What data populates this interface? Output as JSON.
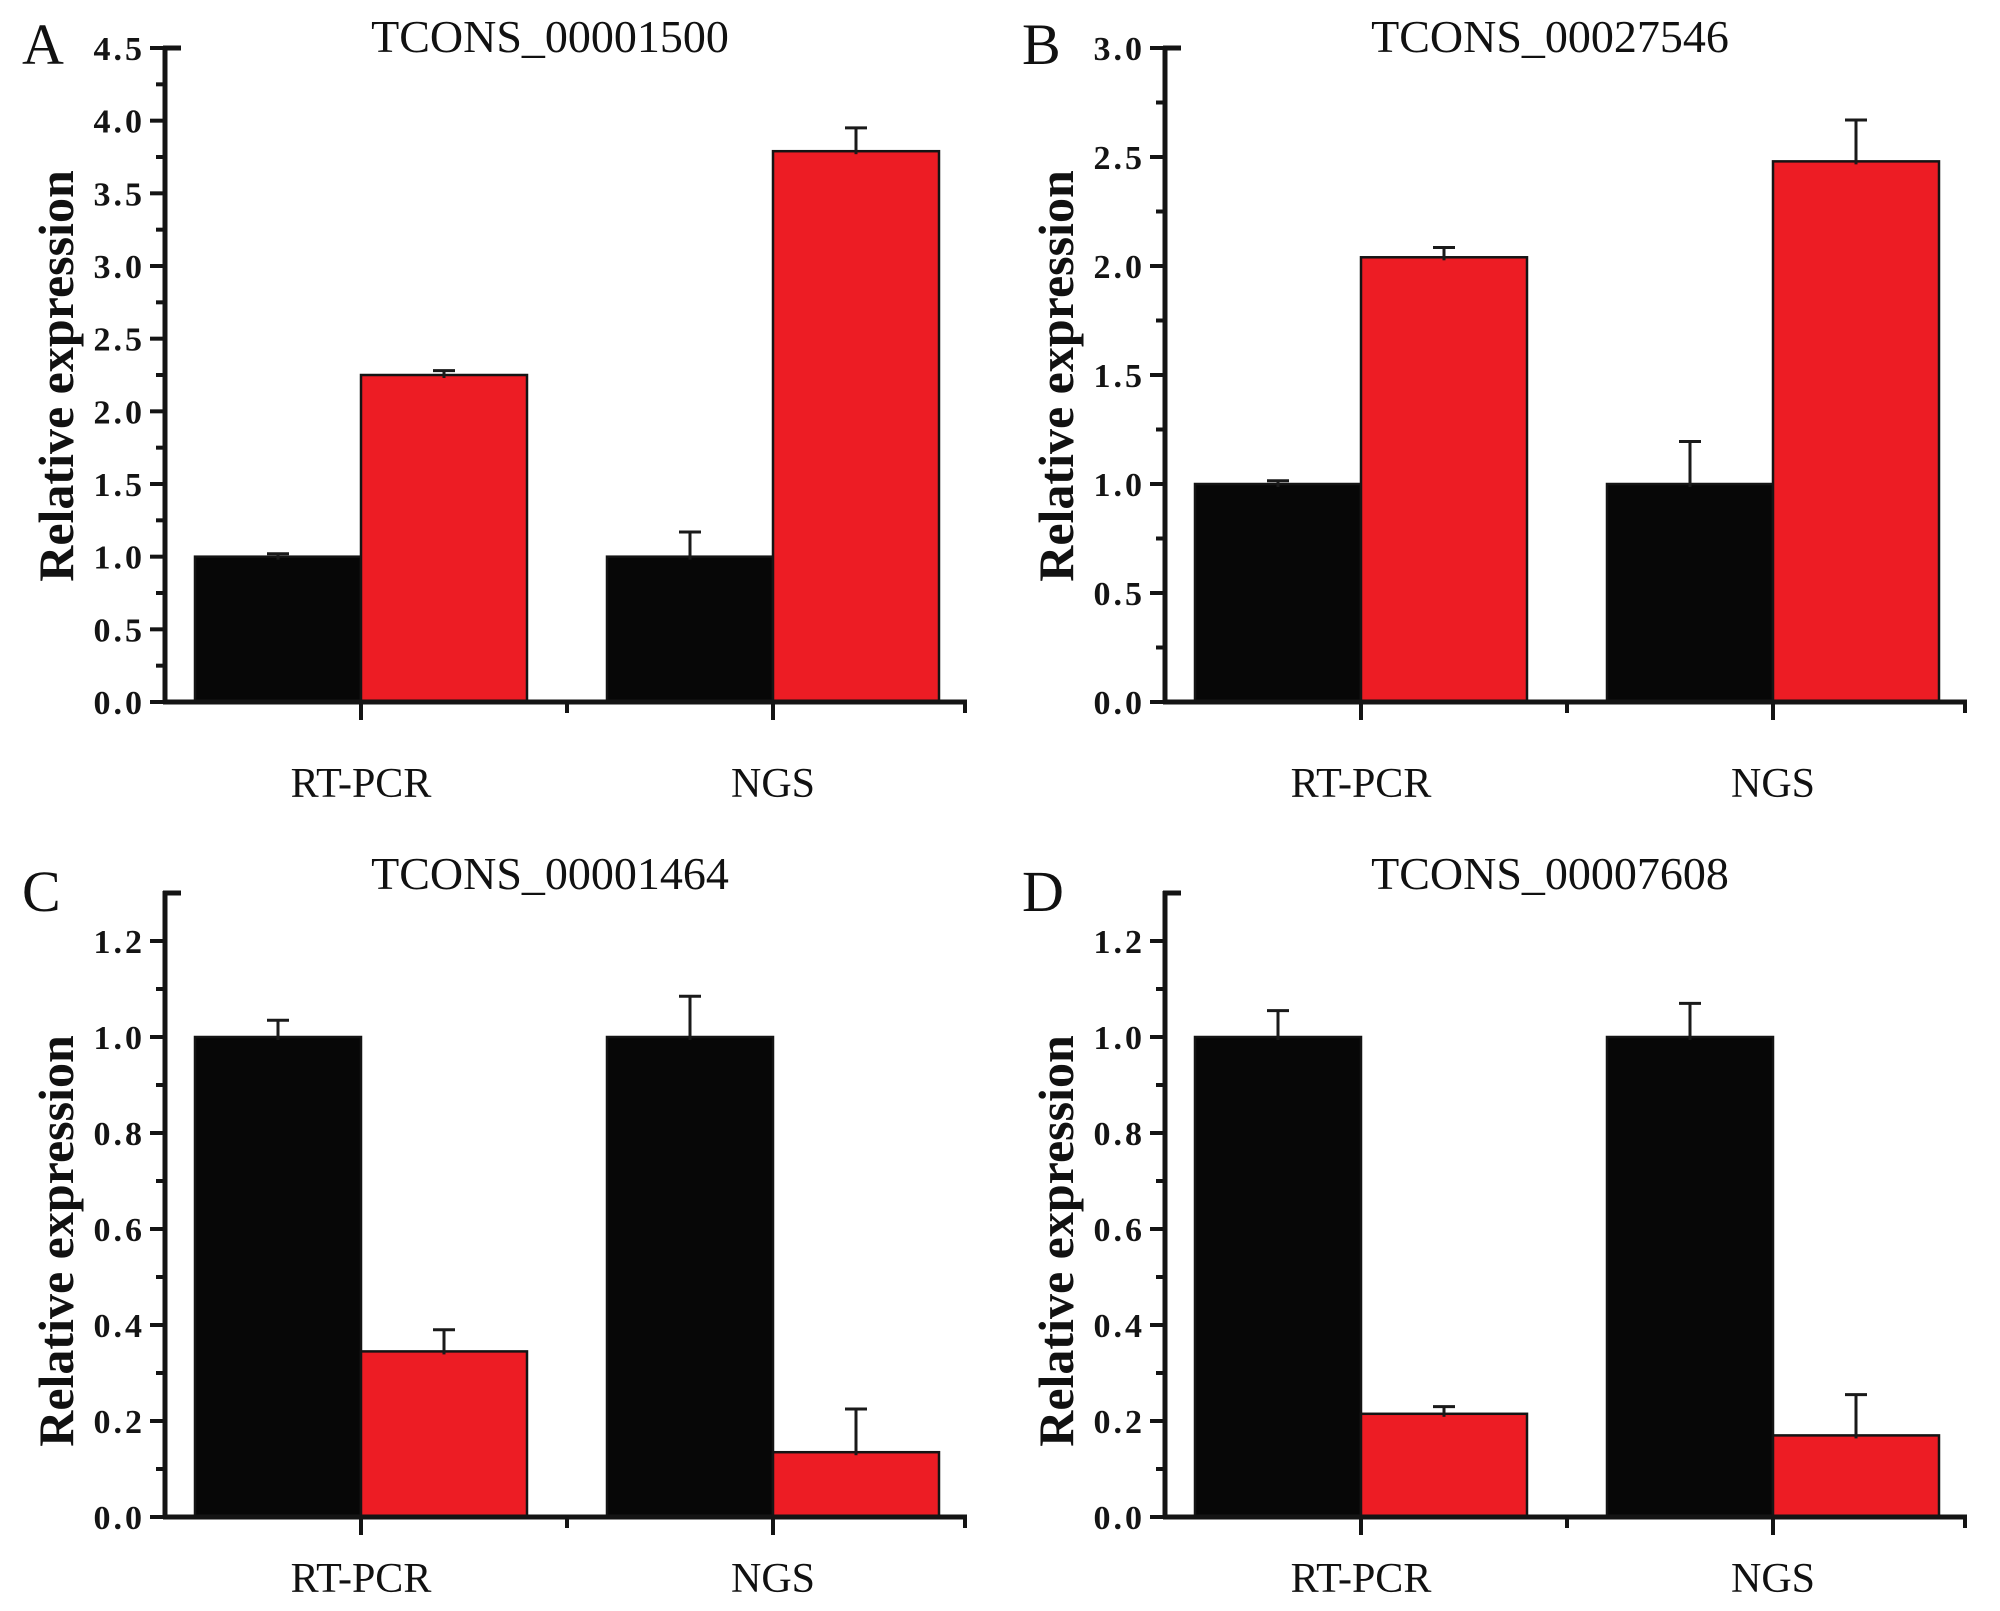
{
  "figure": {
    "background": "#ffffff",
    "colors": {
      "axis": "#141414",
      "bar_outline": "#141414",
      "error_bar": "#1a1a1a",
      "black_bar": "#070707",
      "red_bar": "#ed1c24"
    }
  },
  "chart_data": [
    {
      "type": "bar",
      "panel_label": "A",
      "title": "TCONS_00001500",
      "ylabel": "Relative expression",
      "xlabel": "",
      "categories": [
        "RT-PCR",
        "NGS"
      ],
      "series": [
        {
          "name": "black",
          "color": "#070707",
          "values": [
            1.0,
            1.0
          ],
          "errors": [
            0.02,
            0.17
          ]
        },
        {
          "name": "red",
          "color": "#ed1c24",
          "values": [
            2.25,
            3.79
          ],
          "errors": [
            0.03,
            0.16
          ]
        }
      ],
      "ylim": [
        0,
        4.5
      ],
      "ytick_step": 0.5,
      "yminor_step": 0.25,
      "ytick_decimals": 1,
      "grid": false,
      "legend": "none"
    },
    {
      "type": "bar",
      "panel_label": "B",
      "title": "TCONS_00027546",
      "ylabel": "Relative expression",
      "xlabel": "",
      "categories": [
        "RT-PCR",
        "NGS"
      ],
      "series": [
        {
          "name": "black",
          "color": "#070707",
          "values": [
            1.0,
            1.0
          ],
          "errors": [
            0.015,
            0.195
          ]
        },
        {
          "name": "red",
          "color": "#ed1c24",
          "values": [
            2.04,
            2.48
          ],
          "errors": [
            0.045,
            0.19
          ]
        }
      ],
      "ylim": [
        0,
        3.0
      ],
      "ytick_step": 0.5,
      "yminor_step": 0.25,
      "ytick_decimals": 1,
      "grid": false,
      "legend": "none"
    },
    {
      "type": "bar",
      "panel_label": "C",
      "title": "TCONS_00001464",
      "ylabel": "Relative expression",
      "xlabel": "",
      "categories": [
        "RT-PCR",
        "NGS"
      ],
      "series": [
        {
          "name": "black",
          "color": "#070707",
          "values": [
            1.0,
            1.0
          ],
          "errors": [
            0.035,
            0.085
          ]
        },
        {
          "name": "red",
          "color": "#ed1c24",
          "values": [
            0.345,
            0.135
          ],
          "errors": [
            0.045,
            0.09
          ]
        }
      ],
      "ylim": [
        0,
        1.3
      ],
      "ytick_step": 0.2,
      "yminor_step": 0.1,
      "ytick_decimals": 1,
      "grid": false,
      "legend": "none"
    },
    {
      "type": "bar",
      "panel_label": "D",
      "title": "TCONS_00007608",
      "ylabel": "Relative expression",
      "xlabel": "",
      "categories": [
        "RT-PCR",
        "NGS"
      ],
      "series": [
        {
          "name": "black",
          "color": "#070707",
          "values": [
            1.0,
            1.0
          ],
          "errors": [
            0.055,
            0.07
          ]
        },
        {
          "name": "red",
          "color": "#ed1c24",
          "values": [
            0.215,
            0.17
          ],
          "errors": [
            0.015,
            0.085
          ]
        }
      ],
      "ylim": [
        0,
        1.3
      ],
      "ytick_step": 0.2,
      "yminor_step": 0.1,
      "ytick_decimals": 1,
      "grid": false,
      "legend": "none"
    }
  ]
}
